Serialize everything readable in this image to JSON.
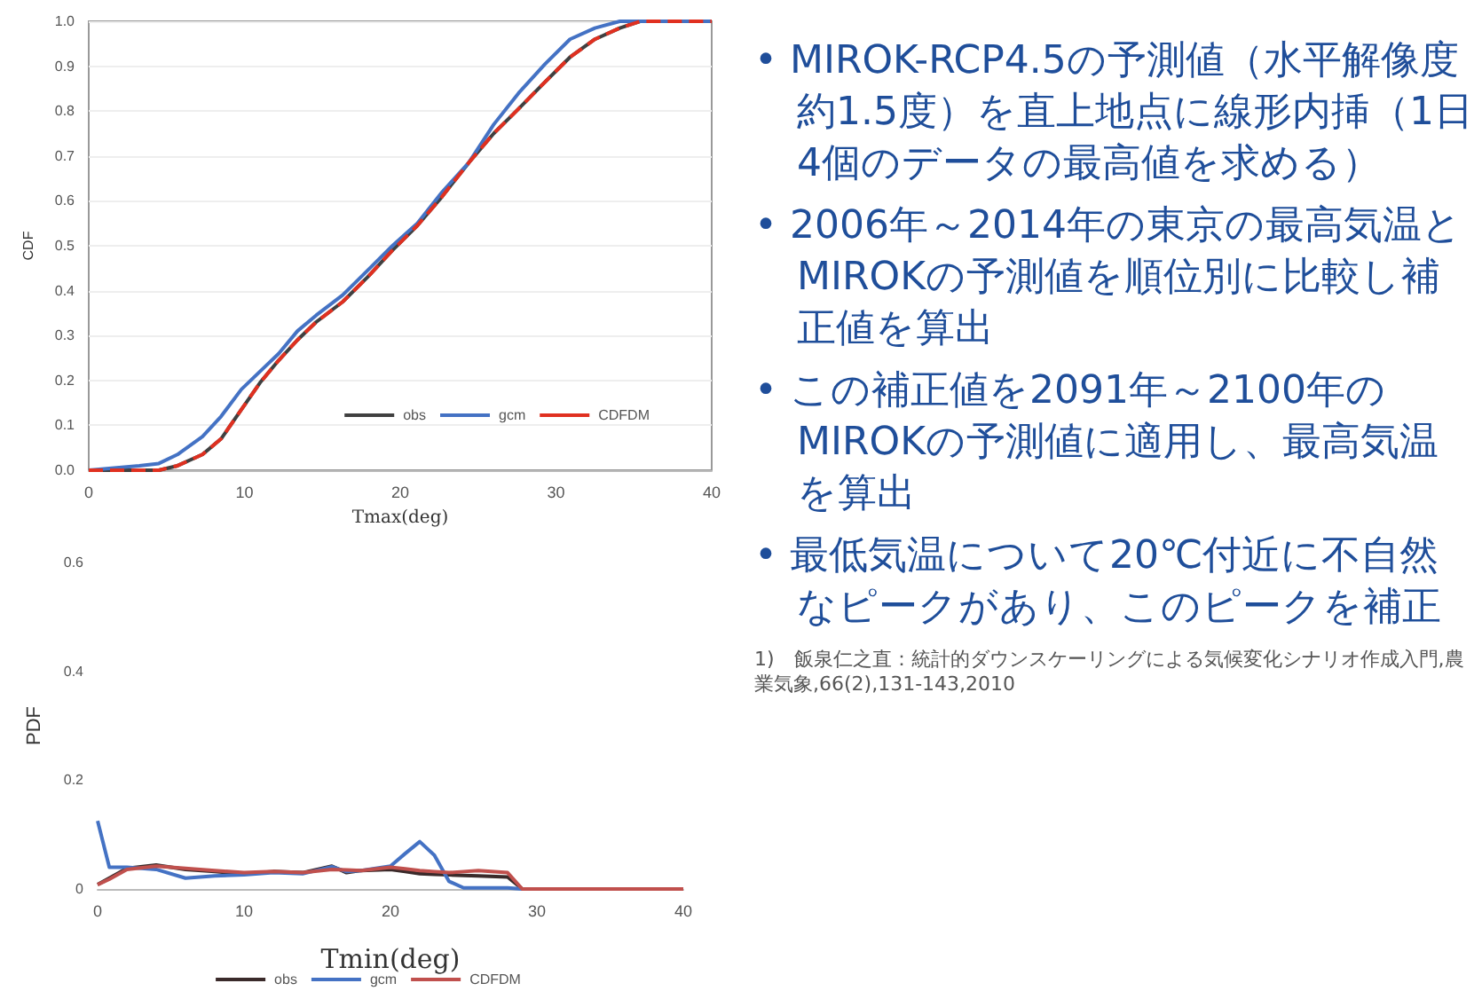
{
  "chart_data": [
    {
      "type": "line",
      "xlabel": "Tmax(deg)",
      "ylabel": "CDF",
      "x": [
        0,
        3.25,
        4.5,
        5.7,
        7.3,
        8.5,
        9.8,
        11,
        12.2,
        13.4,
        14.6,
        16.3,
        17.9,
        19.5,
        21.1,
        22.7,
        24.4,
        26,
        27.6,
        29.3,
        30.9,
        32.5,
        34.1,
        35.4,
        40
      ],
      "series": [
        {
          "name": "obs",
          "color": "#404040",
          "line_style": "solid",
          "values": [
            0,
            0,
            0,
            0.01,
            0.035,
            0.07,
            0.135,
            0.195,
            0.245,
            0.29,
            0.33,
            0.375,
            0.43,
            0.49,
            0.545,
            0.61,
            0.685,
            0.75,
            0.805,
            0.865,
            0.92,
            0.96,
            0.985,
            1,
            1
          ]
        },
        {
          "name": "gcm",
          "color": "#4472c4",
          "line_style": "solid",
          "values": [
            0,
            0.01,
            0.015,
            0.035,
            0.075,
            0.12,
            0.18,
            0.22,
            0.26,
            0.31,
            0.345,
            0.39,
            0.445,
            0.5,
            0.55,
            0.62,
            0.685,
            0.77,
            0.84,
            0.905,
            0.96,
            0.985,
            1,
            1,
            1
          ]
        },
        {
          "name": "CDFDM",
          "color": "#e03020",
          "line_style": "dashed",
          "values": [
            0,
            0,
            0,
            0.01,
            0.035,
            0.07,
            0.135,
            0.195,
            0.245,
            0.29,
            0.33,
            0.375,
            0.43,
            0.49,
            0.545,
            0.61,
            0.685,
            0.75,
            0.805,
            0.865,
            0.92,
            0.96,
            0.985,
            1,
            1
          ]
        }
      ],
      "xlim": [
        0,
        40
      ],
      "xticks": [
        0,
        10,
        20,
        30,
        40
      ],
      "ylim": [
        0,
        1
      ],
      "yticks": [
        {
          "value": 0,
          "label": "0.0"
        },
        {
          "value": 0.1,
          "label": "0.1"
        },
        {
          "value": 0.2,
          "label": "0.2"
        },
        {
          "value": 0.3,
          "label": "0.3"
        },
        {
          "value": 0.4,
          "label": "0.4"
        },
        {
          "value": 0.5,
          "label": "0.5"
        },
        {
          "value": 0.6,
          "label": "0.6"
        },
        {
          "value": 0.7,
          "label": "0.7"
        },
        {
          "value": 0.8,
          "label": "0.8"
        },
        {
          "value": 0.9,
          "label": "0.9"
        },
        {
          "value": 1,
          "label": "1.0"
        }
      ],
      "grid": "y",
      "legend": "bottom right",
      "marker": "none"
    },
    {
      "type": "line",
      "xlabel": "Tmin(deg)",
      "ylabel": "PDF",
      "x": [
        0,
        0.8,
        2,
        4,
        6,
        8,
        10,
        12,
        14,
        16,
        17,
        18,
        20,
        21,
        22,
        23,
        24,
        25,
        26,
        28,
        29,
        40
      ],
      "series": [
        {
          "name": "obs",
          "color": "#3a2a2a",
          "line_style": "solid",
          "values": [
            0.008,
            0.02,
            0.038,
            0.044,
            0.036,
            0.032,
            0.028,
            0.032,
            0.03,
            0.042,
            0.03,
            0.034,
            0.036,
            0.032,
            0.028,
            0.027,
            0.026,
            0.025,
            0.024,
            0.022,
            0,
            0
          ]
        },
        {
          "name": "gcm",
          "color": "#4472c4",
          "line_style": "solid",
          "values": [
            0.125,
            0.04,
            0.04,
            0.036,
            0.02,
            0.024,
            0.026,
            0.03,
            0.028,
            0.041,
            0.032,
            0.034,
            0.042,
            0.065,
            0.087,
            0.062,
            0.014,
            0.002,
            0.002,
            0.002,
            0,
            0
          ]
        },
        {
          "name": "CDFDM",
          "color": "#c0504d",
          "line_style": "solid",
          "values": [
            0.008,
            0.018,
            0.036,
            0.042,
            0.038,
            0.034,
            0.03,
            0.032,
            0.03,
            0.036,
            0.035,
            0.034,
            0.04,
            0.037,
            0.034,
            0.032,
            0.03,
            0.032,
            0.034,
            0.03,
            0,
            0
          ]
        }
      ],
      "xlim": [
        0,
        40
      ],
      "xticks": [
        0,
        10,
        20,
        30,
        40
      ],
      "ylim": [
        0,
        0.6
      ],
      "yticks": [
        0,
        0.2,
        0.4,
        0.6
      ],
      "legend": "bottom",
      "marker": "none"
    },
    {
      "type": "other",
      "annotations": [
        "• MIROK-RCP4.5の予測値（水平解像度約1.5度）を直上地点に線形内挿（1日4個のデータの最高値を求める）",
        "• 2006年～2014年の東京の最高気温とMIROKの予測値を順位別に比較し補正値を算出",
        "• この補正値を2091年～2100年のMIROKの予測値に適用し、最高気温を算出",
        "• 最低気温について20℃付近に不自然なピークがあり、このピークを補正",
        "1)　飯泉仁之直：統計的ダウンスケーリングによる気候変化シナリオ作成入門,農業気象,66(2),131-143,2010"
      ]
    }
  ]
}
